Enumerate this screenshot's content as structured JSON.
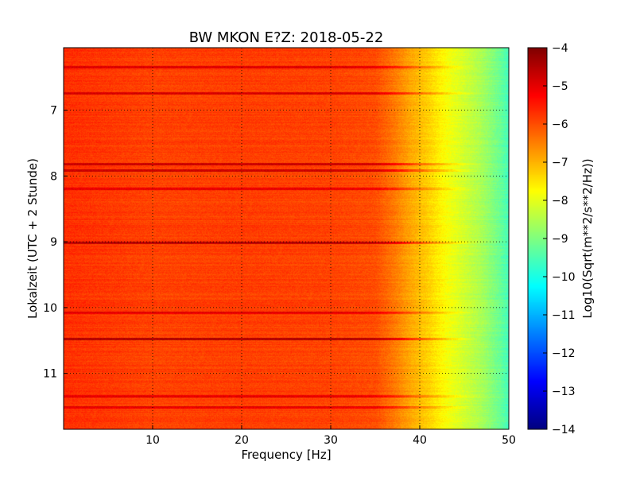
{
  "chart_data": {
    "type": "heatmap",
    "title": "BW MKON E?Z: 2018-05-22",
    "xlabel": "Frequency [Hz]",
    "ylabel": "Lokalzeit (UTC + 2 Stunde)",
    "xlim": [
      0,
      50
    ],
    "ylim": [
      6.05,
      11.85
    ],
    "y_inverted": true,
    "grid": true,
    "x_ticks": [
      10,
      20,
      30,
      40,
      50
    ],
    "x_tick_labels": [
      "10",
      "20",
      "30",
      "40",
      "50"
    ],
    "y_ticks": [
      7,
      8,
      9,
      10,
      11
    ],
    "y_tick_labels": [
      "7",
      "8",
      "9",
      "10",
      "11"
    ],
    "colorbar": {
      "label": "Log10(Sqrt(m**2/s**2/Hz))",
      "colormap": "jet",
      "vmin": -14,
      "vmax": -4,
      "ticks": [
        -4,
        -5,
        -6,
        -7,
        -8,
        -9,
        -10,
        -11,
        -12,
        -13,
        -14
      ],
      "tick_labels": [
        "−4",
        "−5",
        "−6",
        "−7",
        "−8",
        "−9",
        "−10",
        "−11",
        "−12",
        "−13",
        "−14"
      ]
    },
    "spectrum_profile": {
      "frequency_hz": [
        0,
        5,
        10,
        20,
        30,
        35,
        37,
        39,
        41,
        43,
        45,
        47,
        49,
        50
      ],
      "log10_amplitude": [
        -5.7,
        -5.8,
        -5.9,
        -5.85,
        -5.9,
        -6.0,
        -6.4,
        -6.9,
        -7.3,
        -7.8,
        -8.2,
        -8.6,
        -9.2,
        -9.6
      ]
    },
    "dark_bands": [
      {
        "time": 6.35,
        "log10_amplitude": -4.9
      },
      {
        "time": 6.75,
        "log10_amplitude": -4.9
      },
      {
        "time": 7.82,
        "log10_amplitude": -4.8
      },
      {
        "time": 7.92,
        "log10_amplitude": -4.7
      },
      {
        "time": 8.2,
        "log10_amplitude": -5.0
      },
      {
        "time": 9.02,
        "log10_amplitude": -4.6
      },
      {
        "time": 10.08,
        "log10_amplitude": -5.0
      },
      {
        "time": 10.48,
        "log10_amplitude": -4.4
      },
      {
        "time": 11.35,
        "log10_amplitude": -5.1
      },
      {
        "time": 11.52,
        "log10_amplitude": -5.0
      }
    ]
  }
}
